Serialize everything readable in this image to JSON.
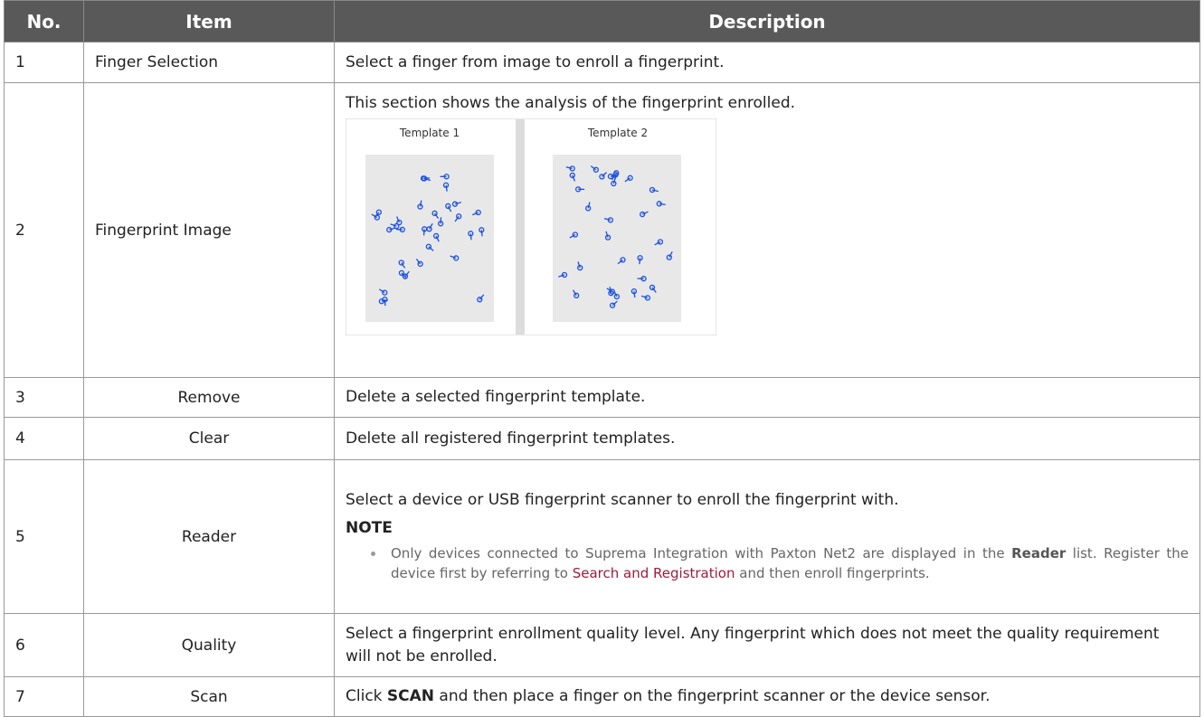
{
  "table": {
    "headers": [
      "No.",
      "Item",
      "Description"
    ],
    "rows": [
      {
        "no": "1",
        "item": "Finger Selection",
        "description": "Select a finger from image to enroll a fingerprint."
      },
      {
        "no": "2",
        "item": "Fingerprint Image",
        "description": "This section shows the analysis of the fingerprint enrolled.",
        "templates": [
          "Template 1",
          "Template 2"
        ]
      },
      {
        "no": "3",
        "item": "Remove",
        "description": "Delete a selected fingerprint template."
      },
      {
        "no": "4",
        "item": "Clear",
        "description": "Delete all registered fingerprint templates."
      },
      {
        "no": "5",
        "item": "Reader",
        "description": "Select a device or USB fingerprint scanner to enroll the fingerprint with.",
        "note": {
          "title": "NOTE",
          "bullet": [
            "Only devices connected to Suprema Integration with Paxton Net2 are displayed in the ",
            "Reader",
            " list. Register the device first by referring to ",
            "Search and Registration",
            " and then enroll fingerprints."
          ]
        }
      },
      {
        "no": "6",
        "item": "Quality",
        "description": "Select a fingerprint enrollment quality level. Any fingerprint which does not meet the quality requirement will not be enrolled."
      },
      {
        "no": "7",
        "item": "Scan",
        "description": [
          "Click ",
          "SCAN",
          " and then place a finger on the fingerprint scanner or the device sensor."
        ]
      }
    ]
  }
}
